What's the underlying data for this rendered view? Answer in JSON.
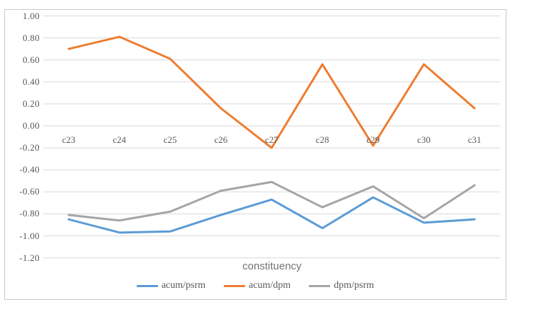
{
  "figure": {
    "background": "#ffffff",
    "frame_border_color": "#c9c9c9"
  },
  "chart_data": {
    "type": "line",
    "title": "",
    "xlabel": "constituency",
    "ylabel": "",
    "categories": [
      "c23",
      "c24",
      "c25",
      "c26",
      "c27",
      "c28",
      "c29",
      "c30",
      "c31"
    ],
    "series": [
      {
        "name": "acum/psrm",
        "color": "#5B9BD5",
        "values": [
          -0.85,
          -0.97,
          -0.96,
          -0.81,
          -0.67,
          -0.93,
          -0.65,
          -0.88,
          -0.85
        ]
      },
      {
        "name": "acum/dpm",
        "color": "#ED7D31",
        "values": [
          0.7,
          0.81,
          0.61,
          0.16,
          -0.2,
          0.56,
          -0.18,
          0.56,
          0.16
        ]
      },
      {
        "name": "dpm/psrm",
        "color": "#A5A5A5",
        "values": [
          -0.81,
          -0.86,
          -0.78,
          -0.59,
          -0.51,
          -0.74,
          -0.55,
          -0.84,
          -0.54
        ]
      }
    ],
    "ylim": [
      -1.2,
      1.0
    ],
    "ytick_step": 0.2,
    "y_ticks": [
      "1.00",
      "0.80",
      "0.60",
      "0.40",
      "0.20",
      "0.00",
      "-0.20",
      "-0.40",
      "-0.60",
      "-0.80",
      "-1.00",
      "-1.20"
    ],
    "grid": true,
    "gridline_color": "#D9D9D9",
    "text_color": "#595959",
    "legend_position": "bottom"
  }
}
